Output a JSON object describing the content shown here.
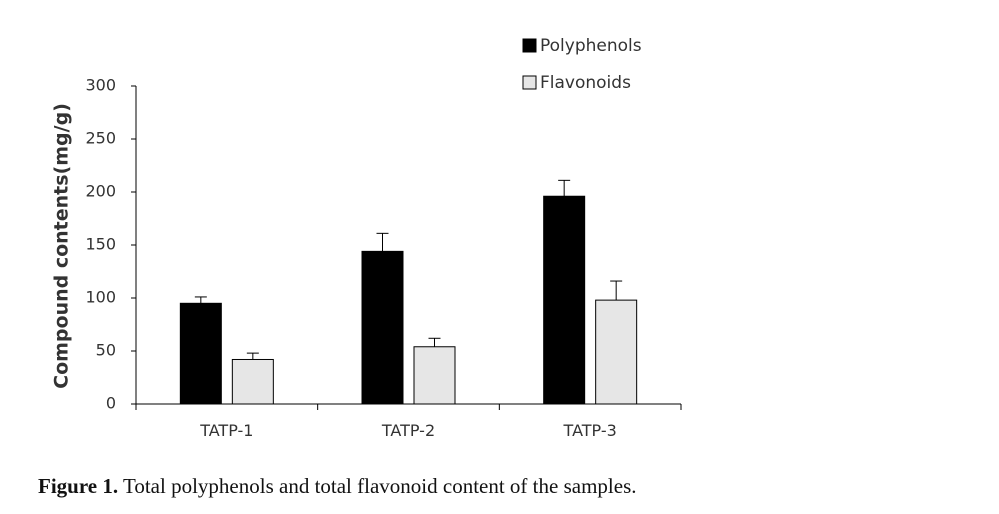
{
  "chart_data": {
    "type": "bar",
    "categories": [
      "TATP-1",
      "TATP-2",
      "TATP-3"
    ],
    "series": [
      {
        "name": "Polyphenols",
        "values": [
          95,
          144,
          196
        ],
        "errors": [
          6,
          17,
          15
        ],
        "color": "#000000"
      },
      {
        "name": "Flavonoids",
        "values": [
          42,
          54,
          98
        ],
        "errors": [
          6,
          8,
          18
        ],
        "color": "#e6e6e6"
      }
    ],
    "ylabel": "Compound contents(mg/g)",
    "xlabel": "",
    "ylim": [
      0,
      300
    ],
    "yticks": [
      0,
      50,
      100,
      150,
      200,
      250,
      300
    ],
    "grid": false,
    "legend_position": "top-right"
  },
  "caption": {
    "label": "Figure 1.",
    "text": "Total polyphenols and total flavonoid content of the samples."
  }
}
